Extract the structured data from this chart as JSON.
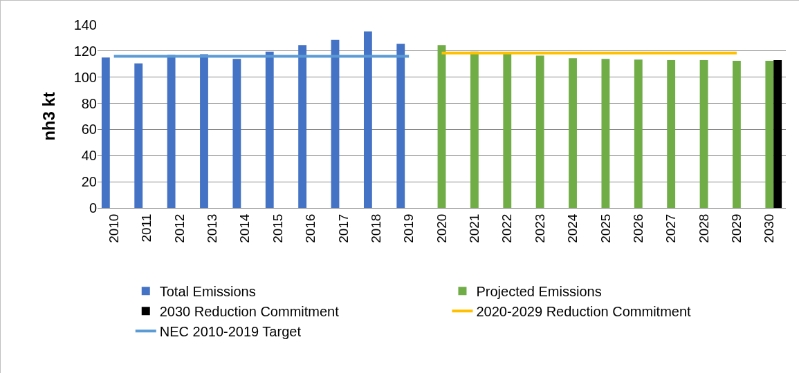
{
  "chart_data": {
    "type": "bar",
    "ylabel": "nh3 kt",
    "categories": [
      "2010",
      "2011",
      "2012",
      "2013",
      "2014",
      "2015",
      "2016",
      "2017",
      "2018",
      "2019",
      "2020",
      "2021",
      "2022",
      "2023",
      "2024",
      "2025",
      "2026",
      "2027",
      "2028",
      "2029",
      "2030"
    ],
    "series": [
      {
        "name": "Total Emissions",
        "color": "#4472c4",
        "values": [
          115,
          110.5,
          117,
          117.5,
          114,
          119.5,
          124.5,
          128.5,
          135,
          125.5,
          null,
          null,
          null,
          null,
          null,
          null,
          null,
          null,
          null,
          null,
          null
        ]
      },
      {
        "name": "Projected Emissions",
        "color": "#70ad47",
        "values": [
          null,
          null,
          null,
          null,
          null,
          null,
          null,
          null,
          null,
          null,
          124.5,
          119.5,
          118,
          116.5,
          114.5,
          114,
          113.5,
          113,
          113,
          112.5,
          112.5
        ]
      },
      {
        "name": "2030 Reduction Commitment",
        "color": "#000000",
        "values": [
          null,
          null,
          null,
          null,
          null,
          null,
          null,
          null,
          null,
          null,
          null,
          null,
          null,
          null,
          null,
          null,
          null,
          null,
          null,
          null,
          113
        ]
      },
      {
        "name": "2020-2029 Reduction Commitment",
        "type": "line",
        "color": "#ffc000",
        "values": [
          null,
          null,
          null,
          null,
          null,
          null,
          null,
          null,
          null,
          null,
          118.5,
          118.5,
          118.5,
          118.5,
          118.5,
          118.5,
          118.5,
          118.5,
          118.5,
          118.5,
          null
        ]
      },
      {
        "name": "NEC 2010-2019 Target",
        "type": "line",
        "color": "#5b9bd5",
        "values": [
          116,
          116,
          116,
          116,
          116,
          116,
          116,
          116,
          116,
          116,
          null,
          null,
          null,
          null,
          null,
          null,
          null,
          null,
          null,
          null,
          null
        ]
      }
    ],
    "ylim": [
      0,
      140
    ],
    "yticks": [
      0,
      20,
      40,
      60,
      80,
      100,
      120,
      140
    ],
    "grid": "y",
    "legend": "bottom"
  }
}
